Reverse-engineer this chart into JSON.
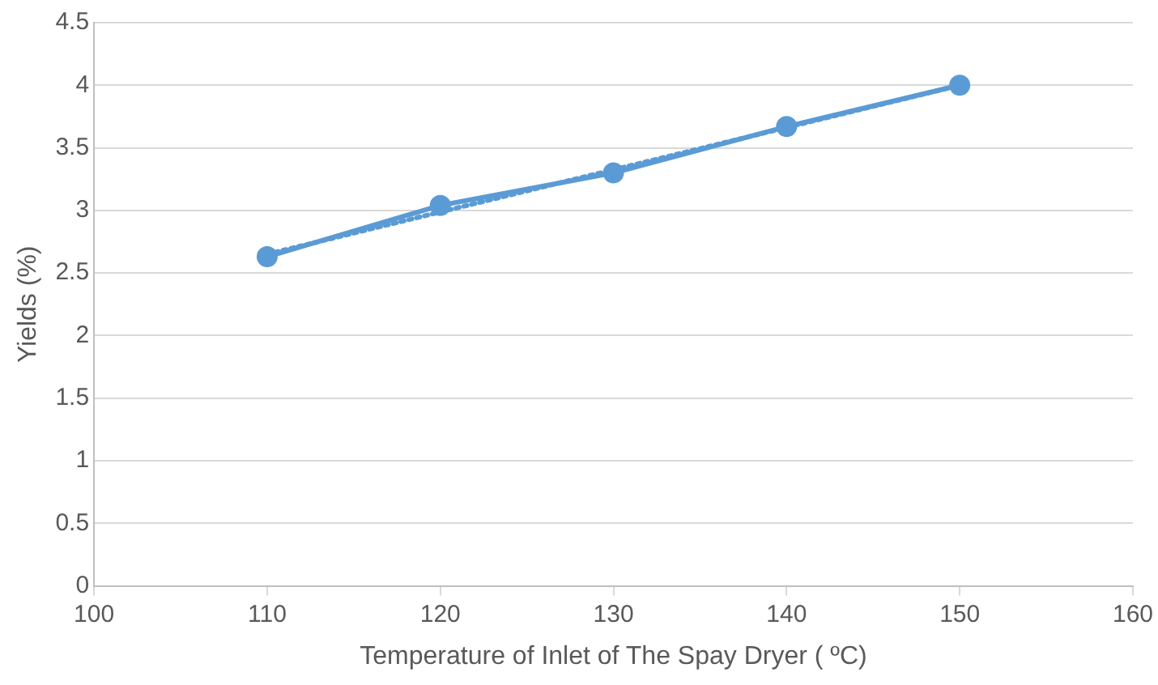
{
  "chart_data": {
    "type": "line",
    "xlabel": "Temperature of Inlet of The Spay Dryer ( ºC)",
    "ylabel": "Yields (%)",
    "xlim": [
      100,
      160
    ],
    "xticks": [
      100,
      110,
      120,
      130,
      140,
      150,
      160
    ],
    "ylim": [
      0,
      4.5
    ],
    "yticks": [
      0,
      0.5,
      1,
      1.5,
      2,
      2.5,
      3,
      3.5,
      4,
      4.5
    ],
    "grid": "y",
    "legend": false,
    "marker": "circle",
    "series": [
      {
        "color": "#5b9bd5",
        "x": [
          110,
          120,
          130,
          140,
          150
        ],
        "values": [
          2.63,
          3.04,
          3.3,
          3.67,
          4.0
        ],
        "line_style": "solid"
      },
      {
        "type": "line",
        "color": "#5b9bd5",
        "x": [
          110,
          150
        ],
        "values": [
          2.65,
          4.0
        ],
        "marker": "none",
        "line_style": "dotted"
      }
    ]
  }
}
